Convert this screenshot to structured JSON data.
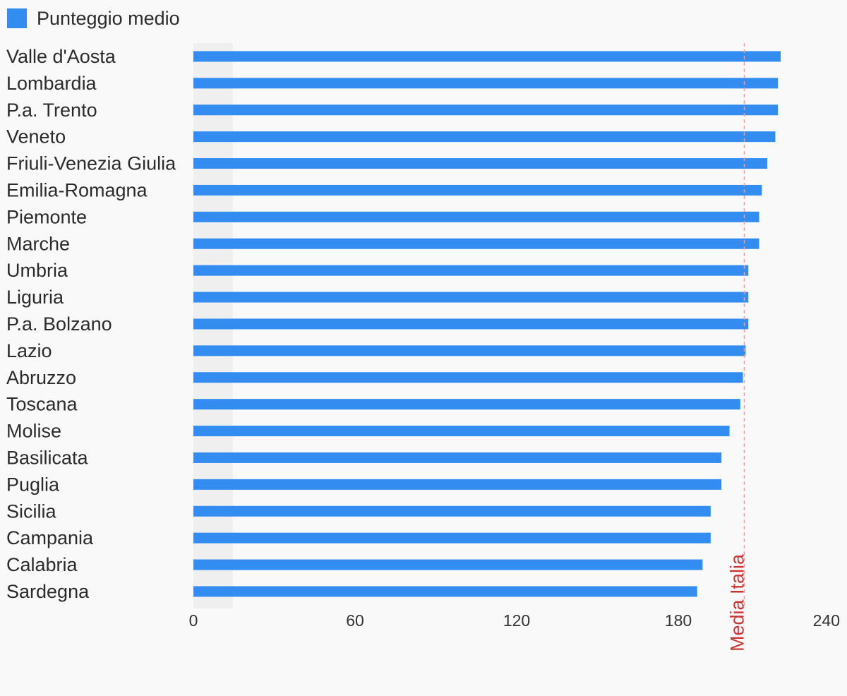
{
  "chart_data": {
    "type": "bar",
    "orientation": "horizontal",
    "legend": {
      "label": "Punteggio medio",
      "placement": "top-left"
    },
    "categories": [
      "Valle d'Aosta",
      "Lombardia",
      "P.a. Trento",
      "Veneto",
      "Friuli-Venezia Giulia",
      "Emilia-Romagna",
      "Piemonte",
      "Marche",
      "Umbria",
      "Liguria",
      "P.a. Bolzano",
      "Lazio",
      "Abruzzo",
      "Toscana",
      "Molise",
      "Basilicata",
      "Puglia",
      "Sicilia",
      "Campania",
      "Calabria",
      "Sardegna"
    ],
    "series": [
      {
        "name": "Punteggio medio",
        "values": [
          218,
          217,
          217,
          216,
          213,
          211,
          210,
          210,
          206,
          206,
          206,
          205,
          204,
          203,
          199,
          196,
          196,
          192,
          192,
          189,
          187
        ]
      }
    ],
    "xlim": [
      0,
      240
    ],
    "xticks": [
      0,
      60,
      120,
      180,
      240
    ],
    "reference_line": {
      "label": "Media Italia",
      "value": 204.5
    },
    "grid": false
  },
  "colors": {
    "bar": "#338cf0",
    "reference": "#cc3333",
    "reference_line": "#e8a0a0",
    "band": "#efefef"
  }
}
